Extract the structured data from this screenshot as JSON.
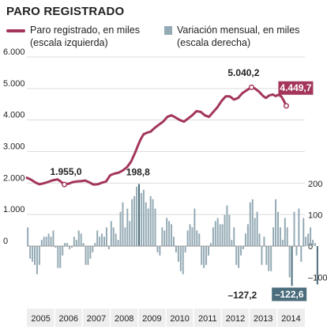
{
  "title": "PARO REGISTRADO",
  "legend": {
    "line_line1": "Paro registrado, en miles",
    "line_line2": "(escala izquierda)",
    "bar_line1": "Variación mensual, en miles",
    "bar_line2": "(escala derecha)"
  },
  "colors": {
    "line": "#a3365a",
    "bar": "#94aab4",
    "bar_highlight": "#4b6d7c",
    "grid": "#dcdcdc",
    "zero": "#9a9a9a",
    "year_band": "#eeeeee"
  },
  "chart_data": {
    "type": "line",
    "title": "PARO REGISTRADO",
    "left_axis": {
      "ylim": [
        0,
        6000
      ],
      "ticks": [
        "6.000",
        "5.000",
        "4.000",
        "3.000",
        "2.000",
        "1.000",
        "0"
      ]
    },
    "right_axis": {
      "ylim": [
        -150,
        300
      ],
      "ticks": [
        "200",
        "100",
        "0",
        "–100"
      ]
    },
    "x_categories": [
      "2005",
      "2006",
      "2007",
      "2008",
      "2009",
      "2010",
      "2011",
      "2012",
      "2013",
      "2014"
    ],
    "series": [
      {
        "name": "Paro registrado, en miles (escala izquierda)",
        "axis": "left",
        "points": [
          [
            2005.0,
            2170
          ],
          [
            2005.15,
            2110
          ],
          [
            2005.3,
            2020
          ],
          [
            2005.45,
            1960
          ],
          [
            2005.6,
            1990
          ],
          [
            2005.75,
            2030
          ],
          [
            2005.9,
            2080
          ],
          [
            2006.1,
            2120
          ],
          [
            2006.2,
            2060
          ],
          [
            2006.35,
            1955
          ],
          [
            2006.5,
            1980
          ],
          [
            2006.65,
            2030
          ],
          [
            2006.8,
            2050
          ],
          [
            2006.95,
            2060
          ],
          [
            2007.1,
            2080
          ],
          [
            2007.25,
            2020
          ],
          [
            2007.4,
            1950
          ],
          [
            2007.55,
            1960
          ],
          [
            2007.7,
            2010
          ],
          [
            2007.85,
            2050
          ],
          [
            2008.0,
            2250
          ],
          [
            2008.15,
            2300
          ],
          [
            2008.3,
            2330
          ],
          [
            2008.45,
            2400
          ],
          [
            2008.6,
            2500
          ],
          [
            2008.75,
            2680
          ],
          [
            2008.9,
            2980
          ],
          [
            2009.0,
            3200
          ],
          [
            2009.1,
            3400
          ],
          [
            2009.2,
            3550
          ],
          [
            2009.33,
            3600
          ],
          [
            2009.45,
            3630
          ],
          [
            2009.6,
            3750
          ],
          [
            2009.75,
            3850
          ],
          [
            2009.9,
            3950
          ],
          [
            2010.05,
            4100
          ],
          [
            2010.2,
            4150
          ],
          [
            2010.35,
            4080
          ],
          [
            2010.5,
            4000
          ],
          [
            2010.65,
            3950
          ],
          [
            2010.8,
            4050
          ],
          [
            2010.95,
            4150
          ],
          [
            2011.1,
            4280
          ],
          [
            2011.25,
            4260
          ],
          [
            2011.4,
            4150
          ],
          [
            2011.55,
            4100
          ],
          [
            2011.7,
            4250
          ],
          [
            2011.85,
            4400
          ],
          [
            2012.0,
            4600
          ],
          [
            2012.15,
            4750
          ],
          [
            2012.3,
            4750
          ],
          [
            2012.45,
            4650
          ],
          [
            2012.6,
            4700
          ],
          [
            2012.75,
            4850
          ],
          [
            2012.92,
            4950
          ],
          [
            2013.08,
            5040
          ],
          [
            2013.2,
            5000
          ],
          [
            2013.35,
            4900
          ],
          [
            2013.5,
            4760
          ],
          [
            2013.6,
            4700
          ],
          [
            2013.72,
            4780
          ],
          [
            2013.85,
            4810
          ],
          [
            2013.95,
            4760
          ],
          [
            2014.05,
            4800
          ],
          [
            2014.15,
            4750
          ],
          [
            2014.25,
            4600
          ],
          [
            2014.33,
            4450
          ]
        ]
      },
      {
        "name": "Variación mensual, en miles (escala derecha)",
        "axis": "right",
        "type": "bar",
        "x_start": 2005.0,
        "step": 0.08333,
        "values": [
          60,
          -40,
          -50,
          -60,
          -90,
          -60,
          20,
          30,
          30,
          40,
          30,
          50,
          -5,
          -70,
          -70,
          -30,
          10,
          10,
          -10,
          -5,
          30,
          20,
          50,
          40,
          10,
          -60,
          -60,
          -40,
          -20,
          10,
          50,
          30,
          40,
          30,
          60,
          -10,
          80,
          60,
          40,
          20,
          110,
          140,
          60,
          120,
          80,
          150,
          160,
          190,
          198.8,
          170,
          180,
          140,
          120,
          160,
          150,
          120,
          -20,
          -30,
          60,
          50,
          90,
          80,
          70,
          30,
          -20,
          -50,
          -80,
          -90,
          -20,
          50,
          70,
          60,
          120,
          50,
          40,
          -60,
          -70,
          -60,
          -30,
          10,
          60,
          80,
          90,
          70,
          70,
          100,
          130,
          100,
          20,
          60,
          -60,
          -70,
          -30,
          -10,
          40,
          70,
          140,
          150,
          90,
          110,
          40,
          -60,
          30,
          -60,
          -80,
          -80,
          60,
          150,
          110,
          60,
          20,
          90,
          60,
          -100,
          -127.2,
          110,
          -30,
          120,
          -50,
          90,
          30,
          40,
          60,
          20,
          10,
          -122.6
        ]
      }
    ],
    "annotations": [
      {
        "text": "1.955,0",
        "x": 2006.35,
        "y": 1955,
        "axis": "left"
      },
      {
        "text": "198,8",
        "x": 2009.0,
        "y": 198.8,
        "axis": "right"
      },
      {
        "text": "5.040,2",
        "x": 2013.08,
        "y": 5040,
        "axis": "left"
      },
      {
        "text": "4.449,7",
        "x": 2014.33,
        "y": 4450,
        "axis": "left",
        "boxed": true
      },
      {
        "text": "–127,2",
        "x": 2013.32,
        "y": -127.2,
        "axis": "right"
      },
      {
        "text": "–122,6",
        "x": 2014.38,
        "y": -122.6,
        "axis": "right",
        "boxed": true
      }
    ],
    "grid": true
  }
}
